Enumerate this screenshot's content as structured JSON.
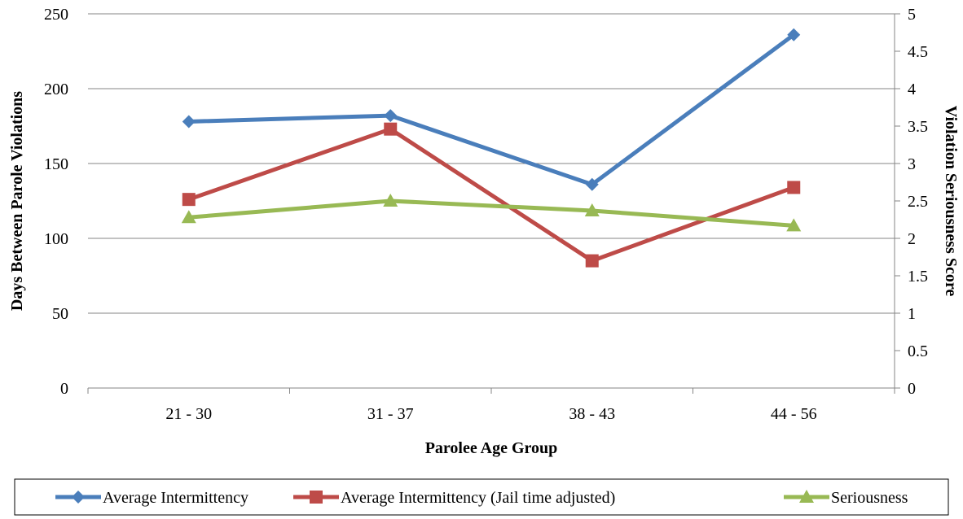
{
  "chart_data": {
    "type": "line",
    "categories": [
      "21 - 30",
      "31 - 37",
      "38 - 43",
      "44 - 56"
    ],
    "xlabel": "Parolee Age Group",
    "ylabel_left": "Days Between Parole Violations",
    "ylabel_right": "Violation Seriousness Score",
    "ylim_left": [
      0,
      250
    ],
    "yticks_left": [
      "0",
      "50",
      "100",
      "150",
      "200",
      "250"
    ],
    "ylim_right": [
      0,
      5
    ],
    "yticks_right": [
      "0",
      "0.5",
      "1",
      "1.5",
      "2",
      "2.5",
      "3",
      "3.5",
      "4",
      "4.5",
      "5"
    ],
    "grid": true,
    "legend_position": "bottom",
    "series": [
      {
        "name": "Average Intermittency",
        "axis": "left",
        "color": "#4a7ebb",
        "marker": "diamond",
        "values": [
          178,
          182,
          136,
          236
        ]
      },
      {
        "name": "Average Intermittency (Jail time adjusted)",
        "axis": "left",
        "color": "#be4b48",
        "marker": "square",
        "values": [
          126,
          173,
          85,
          134
        ]
      },
      {
        "name": "Seriousness",
        "axis": "right",
        "color": "#98b954",
        "marker": "triangle",
        "values": [
          2.28,
          2.5,
          2.37,
          2.17
        ]
      }
    ]
  }
}
